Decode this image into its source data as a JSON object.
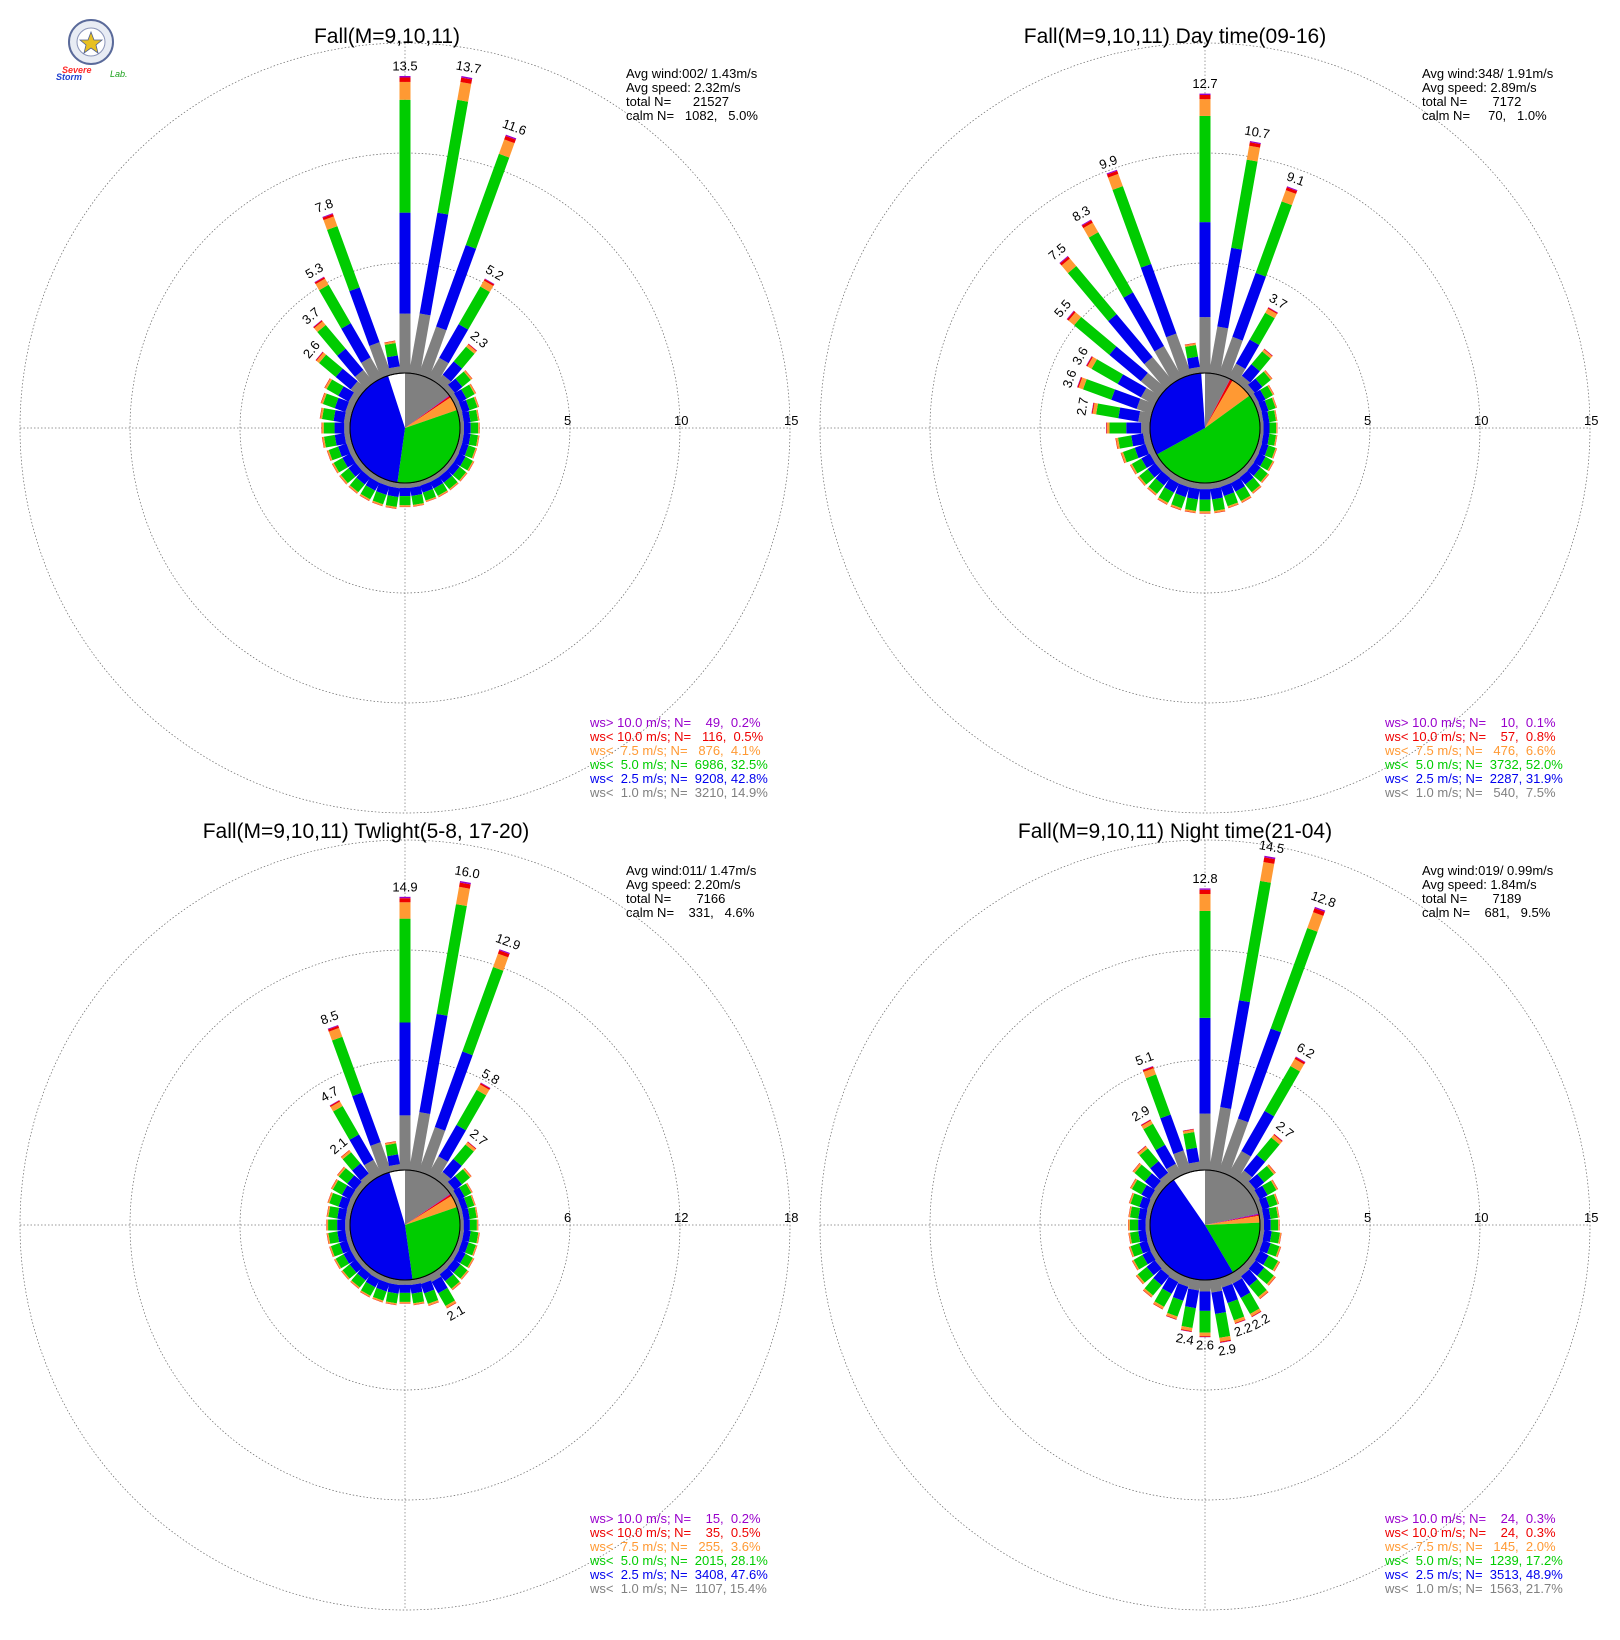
{
  "logo": {
    "text_severe": "Severe",
    "text_storm": "Storm",
    "text_lab": "Lab.",
    "color_severe": "#ff2a2a",
    "color_storm": "#1f3fcf",
    "color_lab": "#1aa01a"
  },
  "bin_colors": {
    "lt1": "#808080",
    "lt2_5": "#0000ee",
    "lt5": "#00cc00",
    "lt7_5": "#ff9933",
    "lt10": "#ee0000",
    "gt10": "#9900cc"
  },
  "chart_data": [
    {
      "type": "wind-rose",
      "title": "Fall(M=9,10,11)",
      "stats": {
        "avg_wind": "Avg wind:002/ 1.43m/s",
        "avg_speed": "Avg speed: 2.32m/s",
        "total": "total N=      21527",
        "calm": "calm N=   1082,   5.0%"
      },
      "rings": [
        5,
        10,
        15
      ],
      "rmax": 15,
      "pie": [
        {
          "bin": "lt1",
          "pct": 14.9
        },
        {
          "bin": "gt10",
          "pct": 0.2
        },
        {
          "bin": "lt10",
          "pct": 0.5
        },
        {
          "bin": "lt7_5",
          "pct": 4.1
        },
        {
          "bin": "lt5",
          "pct": 32.5
        },
        {
          "bin": "lt2_5",
          "pct": 42.8
        }
      ],
      "bars": [
        {
          "dir": 0,
          "value": 13.5,
          "label": "13.5"
        },
        {
          "dir": 10,
          "value": 13.7,
          "label": "13.7"
        },
        {
          "dir": 20,
          "value": 11.6,
          "label": "11.6"
        },
        {
          "dir": 30,
          "value": 5.2,
          "label": "5.2"
        },
        {
          "dir": 40,
          "value": 2.3,
          "label": "2.3"
        },
        {
          "dir": 50,
          "value": 1.3
        },
        {
          "dir": 60,
          "value": 1.1
        },
        {
          "dir": 70,
          "value": 1.0
        },
        {
          "dir": 80,
          "value": 0.9
        },
        {
          "dir": 90,
          "value": 0.9
        },
        {
          "dir": 100,
          "value": 0.9
        },
        {
          "dir": 110,
          "value": 0.9
        },
        {
          "dir": 120,
          "value": 1.0
        },
        {
          "dir": 130,
          "value": 1.0
        },
        {
          "dir": 140,
          "value": 1.0
        },
        {
          "dir": 150,
          "value": 1.0
        },
        {
          "dir": 160,
          "value": 1.0
        },
        {
          "dir": 170,
          "value": 1.1
        },
        {
          "dir": 180,
          "value": 1.1
        },
        {
          "dir": 190,
          "value": 1.2
        },
        {
          "dir": 200,
          "value": 1.2
        },
        {
          "dir": 210,
          "value": 1.2
        },
        {
          "dir": 220,
          "value": 1.2
        },
        {
          "dir": 230,
          "value": 1.2
        },
        {
          "dir": 240,
          "value": 1.2
        },
        {
          "dir": 250,
          "value": 1.2
        },
        {
          "dir": 260,
          "value": 1.3
        },
        {
          "dir": 270,
          "value": 1.3
        },
        {
          "dir": 280,
          "value": 1.4
        },
        {
          "dir": 290,
          "value": 1.5
        },
        {
          "dir": 300,
          "value": 1.6
        },
        {
          "dir": 310,
          "value": 2.6,
          "label": "2.6"
        },
        {
          "dir": 320,
          "value": 3.7,
          "label": "3.7"
        },
        {
          "dir": 330,
          "value": 5.3,
          "label": "5.3"
        },
        {
          "dir": 340,
          "value": 7.8,
          "label": "7.8"
        },
        {
          "dir": 350,
          "value": 1.5
        }
      ],
      "legend": [
        {
          "bin": "gt10",
          "text": "ws> 10.0 m/s; N=    49,  0.2%"
        },
        {
          "bin": "lt10",
          "text": "ws< 10.0 m/s; N=   116,  0.5%"
        },
        {
          "bin": "lt7_5",
          "text": "ws<  7.5 m/s; N=   876,  4.1%"
        },
        {
          "bin": "lt5",
          "text": "ws<  5.0 m/s; N=  6986, 32.5%"
        },
        {
          "bin": "lt2_5",
          "text": "ws<  2.5 m/s; N=  9208, 42.8%"
        },
        {
          "bin": "lt1",
          "text": "ws<  1.0 m/s; N=  3210, 14.9%"
        }
      ]
    },
    {
      "type": "wind-rose",
      "title": "Fall(M=9,10,11) Day time(09-16)",
      "stats": {
        "avg_wind": "Avg wind:348/ 1.91m/s",
        "avg_speed": "Avg speed: 2.89m/s",
        "total": "total N=       7172",
        "calm": "calm N=     70,   1.0%"
      },
      "rings": [
        5,
        10,
        15
      ],
      "rmax": 15,
      "pie": [
        {
          "bin": "lt1",
          "pct": 7.5
        },
        {
          "bin": "gt10",
          "pct": 0.1
        },
        {
          "bin": "lt10",
          "pct": 0.8
        },
        {
          "bin": "lt7_5",
          "pct": 6.6
        },
        {
          "bin": "lt5",
          "pct": 52.0
        },
        {
          "bin": "lt2_5",
          "pct": 31.9
        }
      ],
      "bars": [
        {
          "dir": 0,
          "value": 12.7,
          "label": "12.7"
        },
        {
          "dir": 10,
          "value": 10.7,
          "label": "10.7"
        },
        {
          "dir": 20,
          "value": 9.1,
          "label": "9.1"
        },
        {
          "dir": 30,
          "value": 3.7,
          "label": "3.7"
        },
        {
          "dir": 40,
          "value": 2.0
        },
        {
          "dir": 50,
          "value": 1.3
        },
        {
          "dir": 60,
          "value": 1.0
        },
        {
          "dir": 70,
          "value": 0.9
        },
        {
          "dir": 80,
          "value": 0.8
        },
        {
          "dir": 90,
          "value": 0.8
        },
        {
          "dir": 100,
          "value": 0.8
        },
        {
          "dir": 110,
          "value": 0.9
        },
        {
          "dir": 120,
          "value": 1.0
        },
        {
          "dir": 130,
          "value": 1.1
        },
        {
          "dir": 140,
          "value": 1.2
        },
        {
          "dir": 150,
          "value": 1.3
        },
        {
          "dir": 160,
          "value": 1.3
        },
        {
          "dir": 170,
          "value": 1.4
        },
        {
          "dir": 180,
          "value": 1.4
        },
        {
          "dir": 190,
          "value": 1.4
        },
        {
          "dir": 200,
          "value": 1.4
        },
        {
          "dir": 210,
          "value": 1.4
        },
        {
          "dir": 220,
          "value": 1.3
        },
        {
          "dir": 230,
          "value": 1.3
        },
        {
          "dir": 240,
          "value": 1.3
        },
        {
          "dir": 250,
          "value": 1.5
        },
        {
          "dir": 260,
          "value": 1.6
        },
        {
          "dir": 270,
          "value": 2.0
        },
        {
          "dir": 280,
          "value": 2.7,
          "label": "2.7"
        },
        {
          "dir": 290,
          "value": 3.6,
          "label": "3.6"
        },
        {
          "dir": 300,
          "value": 3.6,
          "label": "3.6"
        },
        {
          "dir": 310,
          "value": 5.5,
          "label": "5.5"
        },
        {
          "dir": 320,
          "value": 7.5,
          "label": "7.5"
        },
        {
          "dir": 330,
          "value": 8.3,
          "label": "8.3"
        },
        {
          "dir": 340,
          "value": 9.9,
          "label": "9.9"
        },
        {
          "dir": 350,
          "value": 1.4
        }
      ],
      "legend": [
        {
          "bin": "gt10",
          "text": "ws> 10.0 m/s; N=    10,  0.1%"
        },
        {
          "bin": "lt10",
          "text": "ws< 10.0 m/s; N=    57,  0.8%"
        },
        {
          "bin": "lt7_5",
          "text": "ws<  7.5 m/s; N=   476,  6.6%"
        },
        {
          "bin": "lt5",
          "text": "ws<  5.0 m/s; N=  3732, 52.0%"
        },
        {
          "bin": "lt2_5",
          "text": "ws<  2.5 m/s; N=  2287, 31.9%"
        },
        {
          "bin": "lt1",
          "text": "ws<  1.0 m/s; N=   540,  7.5%"
        }
      ]
    },
    {
      "type": "wind-rose",
      "title": "Fall(M=9,10,11) Twlight(5-8, 17-20)",
      "stats": {
        "avg_wind": "Avg wind:011/ 1.47m/s",
        "avg_speed": "Avg speed: 2.20m/s",
        "total": "total N=       7166",
        "calm": "calm N=    331,   4.6%"
      },
      "rings": [
        6,
        12,
        18
      ],
      "rmax": 18,
      "pie": [
        {
          "bin": "lt1",
          "pct": 15.4
        },
        {
          "bin": "gt10",
          "pct": 0.2
        },
        {
          "bin": "lt10",
          "pct": 0.5
        },
        {
          "bin": "lt7_5",
          "pct": 3.6
        },
        {
          "bin": "lt5",
          "pct": 28.1
        },
        {
          "bin": "lt2_5",
          "pct": 47.6
        }
      ],
      "bars": [
        {
          "dir": 0,
          "value": 14.9,
          "label": "14.9"
        },
        {
          "dir": 10,
          "value": 16.0,
          "label": "16.0"
        },
        {
          "dir": 20,
          "value": 12.9,
          "label": "12.9"
        },
        {
          "dir": 30,
          "value": 5.8,
          "label": "5.8"
        },
        {
          "dir": 40,
          "value": 2.7,
          "label": "2.7"
        },
        {
          "dir": 50,
          "value": 1.5
        },
        {
          "dir": 60,
          "value": 1.1
        },
        {
          "dir": 70,
          "value": 1.0
        },
        {
          "dir": 80,
          "value": 1.0
        },
        {
          "dir": 90,
          "value": 1.0
        },
        {
          "dir": 100,
          "value": 1.1
        },
        {
          "dir": 110,
          "value": 1.1
        },
        {
          "dir": 120,
          "value": 1.2
        },
        {
          "dir": 130,
          "value": 1.3
        },
        {
          "dir": 140,
          "value": 1.4
        },
        {
          "dir": 150,
          "value": 2.1,
          "label": "2.1"
        },
        {
          "dir": 160,
          "value": 1.6
        },
        {
          "dir": 170,
          "value": 1.4
        },
        {
          "dir": 180,
          "value": 1.3
        },
        {
          "dir": 190,
          "value": 1.4
        },
        {
          "dir": 200,
          "value": 1.4
        },
        {
          "dir": 210,
          "value": 1.4
        },
        {
          "dir": 220,
          "value": 1.3
        },
        {
          "dir": 230,
          "value": 1.3
        },
        {
          "dir": 240,
          "value": 1.3
        },
        {
          "dir": 250,
          "value": 1.3
        },
        {
          "dir": 260,
          "value": 1.3
        },
        {
          "dir": 270,
          "value": 1.3
        },
        {
          "dir": 280,
          "value": 1.3
        },
        {
          "dir": 290,
          "value": 1.4
        },
        {
          "dir": 300,
          "value": 1.5
        },
        {
          "dir": 310,
          "value": 1.6
        },
        {
          "dir": 320,
          "value": 2.1,
          "label": "2.1"
        },
        {
          "dir": 330,
          "value": 4.7,
          "label": "4.7"
        },
        {
          "dir": 340,
          "value": 8.5,
          "label": "8.5"
        },
        {
          "dir": 350,
          "value": 1.6
        }
      ],
      "legend": [
        {
          "bin": "gt10",
          "text": "ws> 10.0 m/s; N=    15,  0.2%"
        },
        {
          "bin": "lt10",
          "text": "ws< 10.0 m/s; N=    35,  0.5%"
        },
        {
          "bin": "lt7_5",
          "text": "ws<  7.5 m/s; N=   255,  3.6%"
        },
        {
          "bin": "lt5",
          "text": "ws<  5.0 m/s; N=  2015, 28.1%"
        },
        {
          "bin": "lt2_5",
          "text": "ws<  2.5 m/s; N=  3408, 47.6%"
        },
        {
          "bin": "lt1",
          "text": "ws<  1.0 m/s; N=  1107, 15.4%"
        }
      ]
    },
    {
      "type": "wind-rose",
      "title": "Fall(M=9,10,11) Night time(21-04)",
      "stats": {
        "avg_wind": "Avg wind:019/ 0.99m/s",
        "avg_speed": "Avg speed: 1.84m/s",
        "total": "total N=       7189",
        "calm": "calm N=    681,   9.5%"
      },
      "rings": [
        5,
        10,
        15
      ],
      "rmax": 15,
      "pie": [
        {
          "bin": "lt1",
          "pct": 21.7
        },
        {
          "bin": "gt10",
          "pct": 0.3
        },
        {
          "bin": "lt10",
          "pct": 0.3
        },
        {
          "bin": "lt7_5",
          "pct": 2.0
        },
        {
          "bin": "lt5",
          "pct": 17.2
        },
        {
          "bin": "lt2_5",
          "pct": 48.9
        }
      ],
      "bars": [
        {
          "dir": 0,
          "value": 12.8,
          "label": "12.8"
        },
        {
          "dir": 10,
          "value": 14.5,
          "label": "14.5"
        },
        {
          "dir": 20,
          "value": 12.8,
          "label": "12.8"
        },
        {
          "dir": 30,
          "value": 6.2,
          "label": "6.2"
        },
        {
          "dir": 40,
          "value": 2.7,
          "label": "2.7"
        },
        {
          "dir": 50,
          "value": 1.5
        },
        {
          "dir": 60,
          "value": 1.2
        },
        {
          "dir": 70,
          "value": 1.0
        },
        {
          "dir": 80,
          "value": 0.9
        },
        {
          "dir": 90,
          "value": 0.9
        },
        {
          "dir": 100,
          "value": 1.0
        },
        {
          "dir": 110,
          "value": 1.1
        },
        {
          "dir": 120,
          "value": 1.3
        },
        {
          "dir": 130,
          "value": 1.5
        },
        {
          "dir": 140,
          "value": 1.7
        },
        {
          "dir": 150,
          "value": 2.2,
          "label": "2.2"
        },
        {
          "dir": 160,
          "value": 2.2,
          "label": "2.2"
        },
        {
          "dir": 170,
          "value": 2.9,
          "label": "2.9"
        },
        {
          "dir": 180,
          "value": 2.6,
          "label": "2.6"
        },
        {
          "dir": 190,
          "value": 2.4,
          "label": "2.4"
        },
        {
          "dir": 200,
          "value": 2.0
        },
        {
          "dir": 210,
          "value": 1.8
        },
        {
          "dir": 220,
          "value": 1.6
        },
        {
          "dir": 230,
          "value": 1.4
        },
        {
          "dir": 240,
          "value": 1.2
        },
        {
          "dir": 250,
          "value": 1.1
        },
        {
          "dir": 260,
          "value": 1.0
        },
        {
          "dir": 270,
          "value": 1.0
        },
        {
          "dir": 280,
          "value": 1.0
        },
        {
          "dir": 290,
          "value": 1.1
        },
        {
          "dir": 300,
          "value": 1.3
        },
        {
          "dir": 310,
          "value": 1.6
        },
        {
          "dir": 320,
          "value": 2.0
        },
        {
          "dir": 330,
          "value": 2.9,
          "label": "2.9"
        },
        {
          "dir": 340,
          "value": 5.1,
          "label": "5.1"
        },
        {
          "dir": 350,
          "value": 1.9
        }
      ],
      "legend": [
        {
          "bin": "gt10",
          "text": "ws> 10.0 m/s; N=    24,  0.3%"
        },
        {
          "bin": "lt10",
          "text": "ws< 10.0 m/s; N=    24,  0.3%"
        },
        {
          "bin": "lt7_5",
          "text": "ws<  7.5 m/s; N=   145,  2.0%"
        },
        {
          "bin": "lt5",
          "text": "ws<  5.0 m/s; N=  1239, 17.2%"
        },
        {
          "bin": "lt2_5",
          "text": "ws<  2.5 m/s; N=  3513, 48.9%"
        },
        {
          "bin": "lt1",
          "text": "ws<  1.0 m/s; N=  1563, 21.7%"
        }
      ]
    }
  ]
}
